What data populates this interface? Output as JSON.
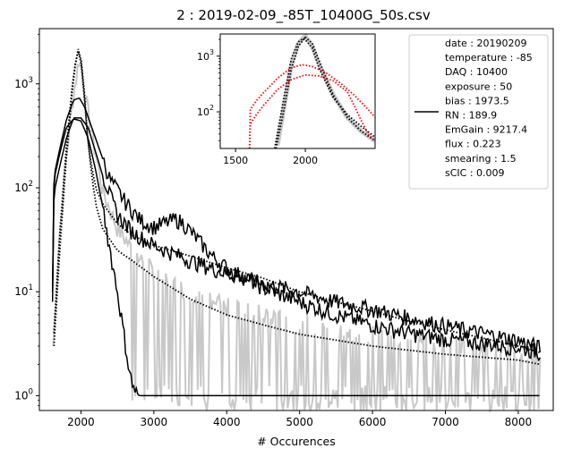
{
  "chart_data": {
    "type": "line",
    "title": "2 : 2019-02-09_-85T_10400G_50s.csv",
    "xlabel": "# Occurences",
    "ylabel": "",
    "y_scale": "log",
    "xlim": [
      1430,
      8480
    ],
    "ylim": [
      0.72,
      3400
    ],
    "x_ticks": [
      {
        "value": 2000,
        "label": "2000"
      },
      {
        "value": 3000,
        "label": "3000"
      },
      {
        "value": 4000,
        "label": "4000"
      },
      {
        "value": 5000,
        "label": "5000"
      },
      {
        "value": 6000,
        "label": "6000"
      },
      {
        "value": 7000,
        "label": "7000"
      },
      {
        "value": 8000,
        "label": "8000"
      }
    ],
    "y_ticks": [
      {
        "value": 1,
        "base": "10",
        "exp": "0"
      },
      {
        "value": 10,
        "base": "10",
        "exp": "1"
      },
      {
        "value": 100,
        "base": "10",
        "exp": "2"
      },
      {
        "value": 1000,
        "base": "10",
        "exp": "3"
      }
    ],
    "series": [
      {
        "style": "gray-histogram",
        "color": "#c8c8c8",
        "x": [
          1620,
          1700,
          1800,
          1900,
          1980,
          2100,
          2300,
          2500,
          2800,
          3200,
          3600,
          4000,
          4500,
          5000,
          5500,
          6000,
          6500,
          7000,
          7500,
          8000,
          8300
        ],
        "y": [
          3,
          30,
          200,
          800,
          1800,
          500,
          90,
          40,
          20,
          12,
          9,
          7,
          6,
          5,
          4.3,
          3.8,
          3.4,
          3.1,
          2.9,
          2.8,
          2.7
        ]
      },
      {
        "style": "black-solid-peaked",
        "color": "#000000",
        "x": [
          1610,
          1630,
          1700,
          1800,
          1900,
          1980,
          2050,
          2200,
          2400,
          2600,
          2800,
          3000,
          3200,
          3300,
          3400,
          3600,
          3800,
          4000,
          4500,
          5000,
          5500,
          6000,
          6500,
          7000,
          7500,
          8000,
          8300
        ],
        "y": [
          10,
          130,
          220,
          450,
          700,
          730,
          600,
          300,
          120,
          75,
          50,
          42,
          47,
          50,
          46,
          32,
          22,
          17,
          11,
          8,
          6,
          4.8,
          4,
          3.5,
          3.2,
          2.9,
          2.6
        ]
      },
      {
        "style": "black-solid-broad",
        "color": "#000000",
        "x": [
          1610,
          1630,
          1700,
          1800,
          1900,
          2000,
          2100,
          2300,
          2500,
          2700,
          3000,
          3500,
          4000,
          4500,
          5000,
          5500,
          6000,
          6500,
          7000,
          7500,
          8000,
          8300
        ],
        "y": [
          8,
          90,
          150,
          300,
          470,
          470,
          380,
          130,
          55,
          38,
          28,
          20,
          15,
          12,
          10,
          8,
          6.8,
          5.6,
          4.7,
          4.0,
          3.4,
          2.9
        ]
      },
      {
        "style": "black-solid-narrow",
        "color": "#000000",
        "x": [
          1610,
          1630,
          1700,
          1800,
          1900,
          2000,
          2100,
          2200,
          2300,
          2400,
          2500,
          2550,
          2600,
          2650,
          2700,
          2750,
          2800,
          3000,
          3500,
          4000,
          5000,
          6000,
          7000,
          8000,
          8290
        ],
        "y": [
          10,
          120,
          200,
          380,
          460,
          440,
          300,
          150,
          65,
          25,
          10,
          6,
          3.5,
          2,
          1.3,
          1.1,
          1,
          1,
          1,
          1,
          1,
          1,
          1,
          1,
          1
        ]
      },
      {
        "style": "black-dotted-narrow",
        "color": "#000000",
        "x": [
          1630,
          1700,
          1800,
          1900,
          1960,
          2000,
          2050,
          2100,
          2200,
          2300,
          2500,
          2700,
          3000,
          3500,
          4000,
          4500,
          5000,
          6000,
          7000,
          8000,
          8300
        ],
        "y": [
          3,
          20,
          200,
          1200,
          2200,
          1800,
          800,
          250,
          70,
          40,
          25,
          20,
          14,
          8.5,
          6,
          4.8,
          3.9,
          3.0,
          2.5,
          2.2,
          2.0
        ]
      },
      {
        "style": "black-dotted-broad",
        "color": "#000000",
        "x": [
          1630,
          1700,
          1800,
          1900,
          1960,
          2000,
          2050,
          2100,
          2200,
          2300,
          2500,
          2700,
          3000,
          3500,
          4000,
          4500,
          5000,
          5500,
          6000,
          6500,
          7000,
          7500,
          8000,
          8300
        ],
        "y": [
          4,
          30,
          250,
          1300,
          2100,
          1700,
          700,
          250,
          100,
          70,
          45,
          35,
          28,
          22,
          17,
          13.5,
          10,
          8,
          6.5,
          5.2,
          4.3,
          3.6,
          3.0,
          2.6
        ]
      }
    ],
    "legend": {
      "placement": "upper-right",
      "line_color": "#000000",
      "entries": [
        "date : 20190209",
        "temperature : -85",
        "DAQ : 10400",
        "exposure : 50",
        "bias : 1973.5",
        "RN : 189.9",
        "EmGain : 9217.4",
        "flux : 0.223",
        "smearing : 1.5",
        "sCIC : 0.009"
      ]
    },
    "inset": {
      "type": "line",
      "y_scale": "log",
      "xlim": [
        1390,
        2500
      ],
      "ylim": [
        22,
        2500
      ],
      "x_ticks": [
        {
          "value": 1500,
          "label": "1500"
        },
        {
          "value": 2000,
          "label": "2000"
        }
      ],
      "y_ticks": [
        {
          "value": 100,
          "base": "10",
          "exp": "2"
        },
        {
          "value": 1000,
          "base": "10",
          "exp": "3"
        }
      ],
      "series": [
        {
          "style": "gray-band",
          "color": "#c8c8c8",
          "x": [
            1800,
            1900,
            1950,
            2000,
            2050,
            2100,
            2200,
            2300,
            2400,
            2500
          ],
          "y": [
            25,
            700,
            1700,
            2300,
            1500,
            700,
            200,
            80,
            45,
            30
          ]
        },
        {
          "style": "black-dotted",
          "color": "#000000",
          "x": [
            1790,
            1850,
            1900,
            1950,
            2000,
            2050,
            2100,
            2200,
            2300,
            2400,
            2500
          ],
          "y": [
            22,
            120,
            600,
            1500,
            2200,
            1700,
            800,
            200,
            80,
            45,
            30
          ]
        },
        {
          "style": "black-dotted",
          "color": "#000000",
          "x": [
            1780,
            1850,
            1900,
            1950,
            1990,
            2050,
            2100,
            2200,
            2300,
            2400,
            2500
          ],
          "y": [
            22,
            200,
            900,
            1800,
            2100,
            1400,
            600,
            180,
            90,
            55,
            35
          ]
        },
        {
          "style": "red-dotted",
          "color": "#ff0000",
          "x": [
            1600,
            1605,
            1650,
            1700,
            1800,
            1900,
            1980,
            2050,
            2150,
            2250,
            2350,
            2450,
            2500
          ],
          "y": [
            22,
            110,
            160,
            220,
            400,
            620,
            700,
            650,
            500,
            330,
            200,
            110,
            80
          ]
        },
        {
          "style": "red-dotted",
          "color": "#ff0000",
          "x": [
            1600,
            1605,
            1650,
            1700,
            1800,
            1900,
            2000,
            2100,
            2200,
            2300,
            2350,
            2400,
            2450,
            2500
          ],
          "y": [
            22,
            60,
            90,
            130,
            250,
            380,
            460,
            440,
            360,
            230,
            130,
            70,
            40,
            30
          ]
        }
      ]
    }
  }
}
